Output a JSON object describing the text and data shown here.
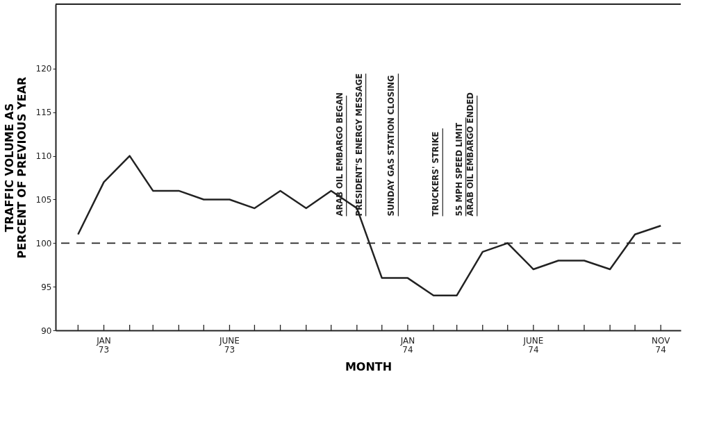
{
  "chart_data": {
    "type": "line",
    "xlabel": "MONTH",
    "ylabel": "TRAFFIC VOLUME AS\nPERCENT OF PREVIOUS YEAR",
    "x": [
      "1972-12",
      "1973-01",
      "1973-02",
      "1973-03",
      "1973-04",
      "1973-05",
      "1973-06",
      "1973-07",
      "1973-08",
      "1973-09",
      "1973-10",
      "1973-11",
      "1973-12",
      "1974-01",
      "1974-02",
      "1974-03",
      "1974-04",
      "1974-05",
      "1974-06",
      "1974-07",
      "1974-08",
      "1974-09",
      "1974-10",
      "1974-11"
    ],
    "series": [
      {
        "color": "#222222",
        "values": [
          101,
          107,
          110,
          106,
          106,
          105,
          105,
          104,
          106,
          104,
          106,
          104,
          96,
          96,
          94,
          94,
          99,
          100,
          97,
          98,
          98,
          97,
          101,
          102
        ]
      }
    ],
    "xlim": [
      "1972-11-04",
      "1974-11-25"
    ],
    "ylim": [
      90,
      127.4
    ],
    "yticks": [
      90,
      95,
      100,
      105,
      110,
      115,
      120
    ],
    "xticks": [
      {
        "value": "1972-12",
        "label": null
      },
      {
        "value": "1973-01",
        "label": "JAN\n73"
      },
      {
        "value": "1973-02",
        "label": null
      },
      {
        "value": "1973-03",
        "label": null
      },
      {
        "value": "1973-04",
        "label": null
      },
      {
        "value": "1973-05",
        "label": null
      },
      {
        "value": "1973-06",
        "label": "JUNE\n73"
      },
      {
        "value": "1973-07",
        "label": null
      },
      {
        "value": "1973-08",
        "label": null
      },
      {
        "value": "1973-09",
        "label": null
      },
      {
        "value": "1973-10",
        "label": null
      },
      {
        "value": "1973-11",
        "label": null
      },
      {
        "value": "1973-12",
        "label": null
      },
      {
        "value": "1974-01",
        "label": "JAN\n74"
      },
      {
        "value": "1974-02",
        "label": null
      },
      {
        "value": "1974-03",
        "label": null
      },
      {
        "value": "1974-04",
        "label": null
      },
      {
        "value": "1974-05",
        "label": null
      },
      {
        "value": "1974-06",
        "label": "JUNE\n74"
      },
      {
        "value": "1974-07",
        "label": null
      },
      {
        "value": "1974-08",
        "label": null
      },
      {
        "value": "1974-09",
        "label": null
      },
      {
        "value": "1974-10",
        "label": null
      },
      {
        "value": "1974-11",
        "label": "NOV\n74"
      }
    ],
    "ref_lines": [
      {
        "axis": "y",
        "value": 100,
        "label": null,
        "color": "#222222",
        "line_style": "dashed"
      }
    ],
    "annotations": [
      "ARAB OIL EMBARGO BEGAN",
      "PRESIDENT'S ENERGY MESSAGE",
      "SUNDAY GAS STATION CLOSING",
      "TRUCKERS' STRIKE",
      "55 MPH SPEED LIMIT",
      "ARAB OIL EMBARGO ENDED"
    ],
    "grid": false,
    "legend": false,
    "marker": "none",
    "line_style": "solid"
  }
}
